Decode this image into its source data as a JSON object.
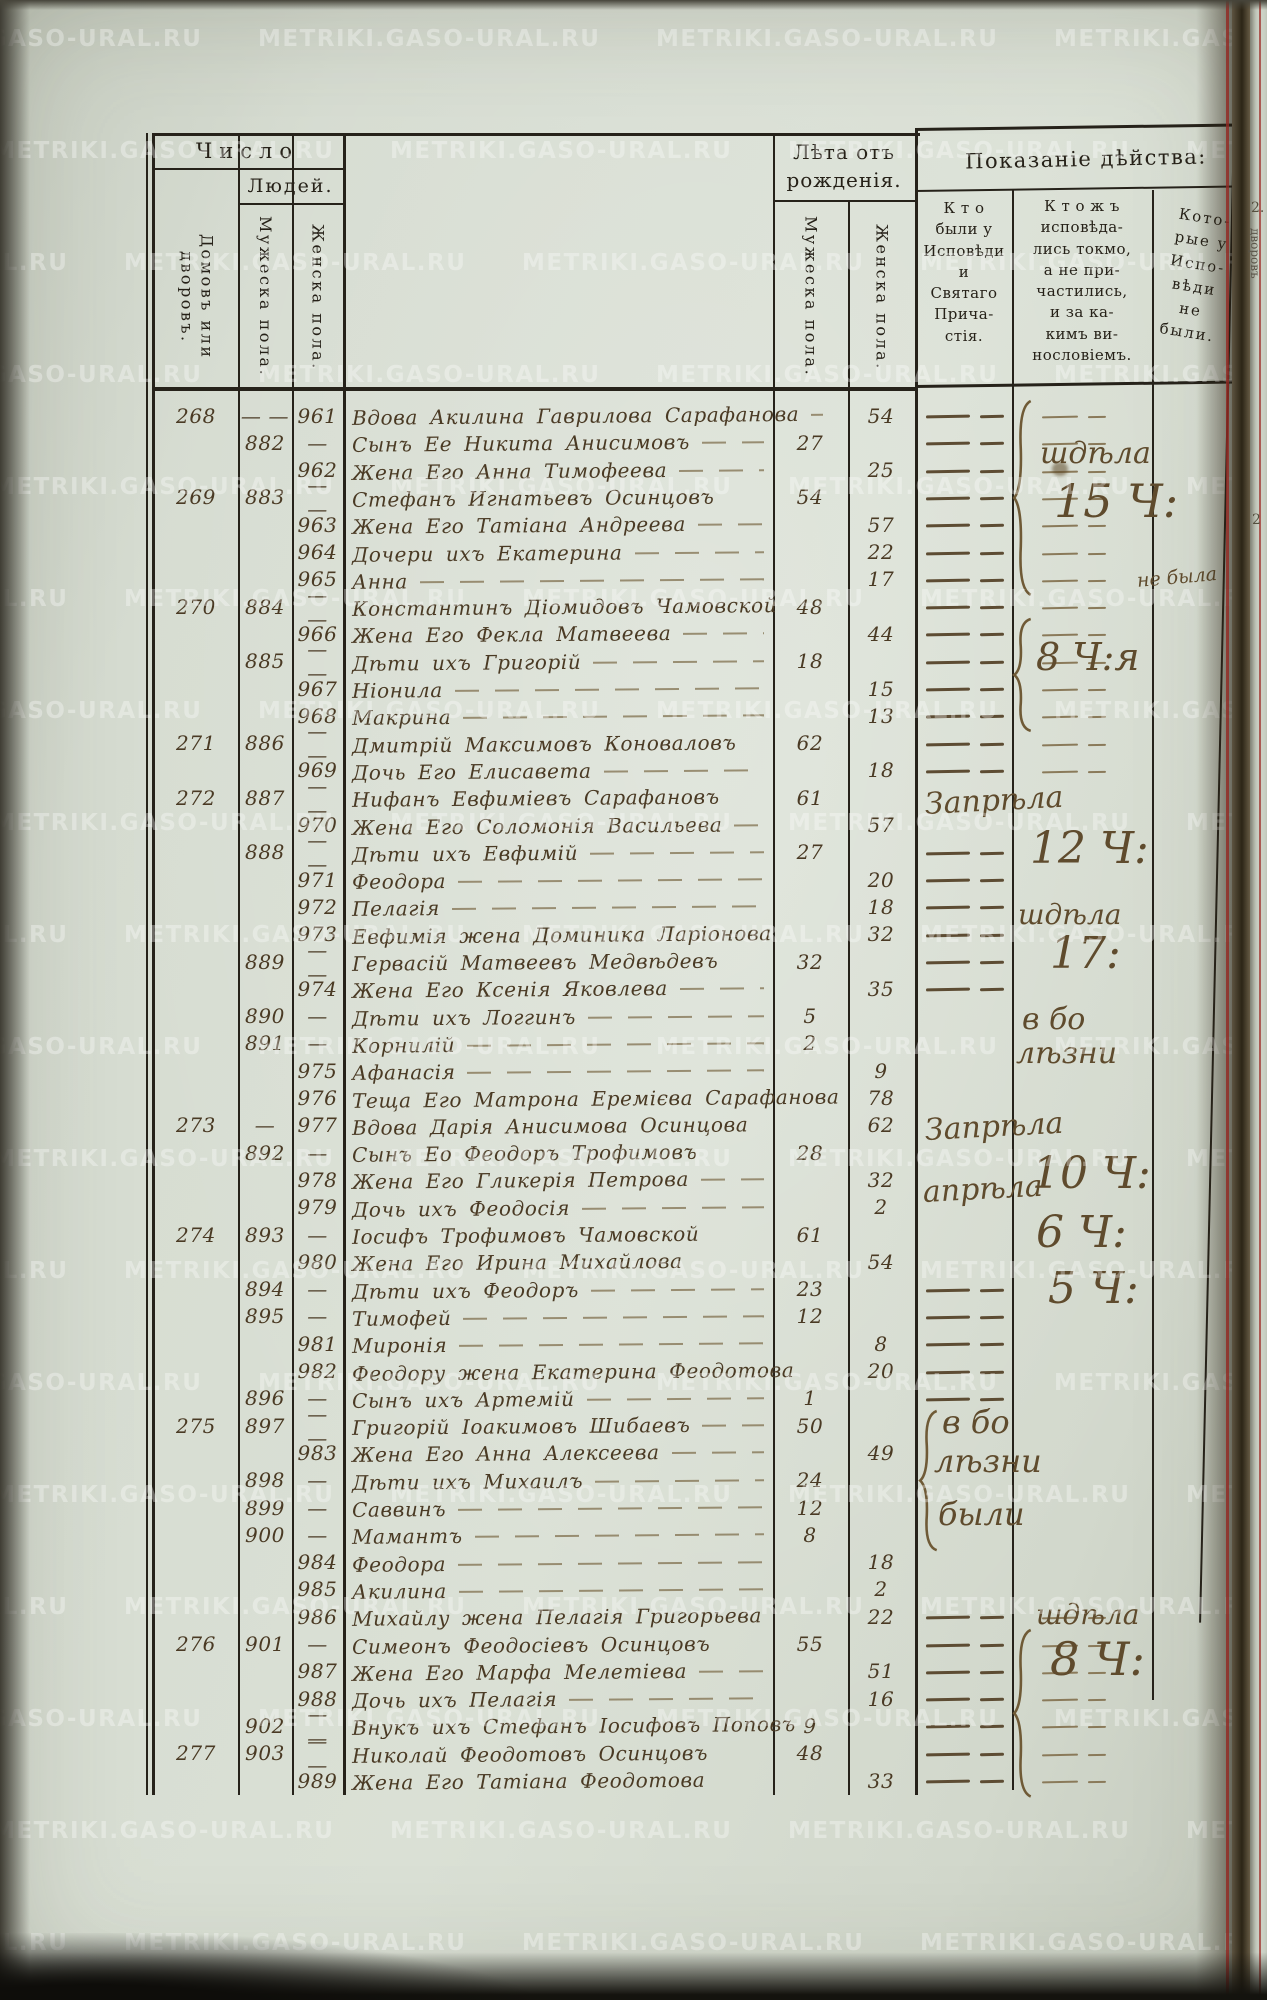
{
  "watermark": {
    "text": "METRIKI.GASO-URAL.RU"
  },
  "header": {
    "chislo": "Число",
    "lyudey": "Людей.",
    "col_households": "Домовъ или дворовъ.",
    "col_male_serial": "Мужеска пола.",
    "col_female_serial": "Женска пола.",
    "leta_line1": "Лѣта отъ",
    "leta_line2": "рожденія.",
    "col_male_age": "Мужеска пола.",
    "col_female_age": "Женска пола.",
    "action_title": "Показаніе дѣйства:",
    "action_col1": [
      "К т о",
      "были у",
      "Исповѣди",
      "и",
      "Святаго",
      "Прича-",
      "стія."
    ],
    "action_col2": [
      "К т о ж ъ",
      "исповѣда-",
      "лись токмо,",
      "а не при-",
      "частились,",
      "и за ка-",
      "кимъ ви-",
      "нословіемъ."
    ],
    "action_col3": [
      "Кото-",
      "рые у",
      "Испо-",
      "вѣди",
      "не",
      "были."
    ]
  },
  "rows": [
    {
      "h": "268",
      "m": "— —",
      "f": "961",
      "n": "Вдова Акилина Гаврилова Сарафанова",
      "fa": "54",
      "fill": true,
      "d1": true,
      "d2": true
    },
    {
      "m": "882",
      "f": "—",
      "n": "Сынъ Ее Никита Анисимовъ",
      "ma": "27",
      "fill": true,
      "d1": true,
      "d2": true
    },
    {
      "f": "962",
      "n": "Жена Его Анна Тимофеева",
      "fa": "25",
      "fill": true,
      "d1": true,
      "d2": true
    },
    {
      "h": "269",
      "m": "883",
      "f": "— —",
      "n": "Стефанъ Игнатьевъ Осинцовъ",
      "ma": "54",
      "d1": true,
      "d2": true
    },
    {
      "f": "963",
      "n": "Жена Его Татіана Андреева",
      "fa": "57",
      "fill": true,
      "d1": true,
      "d2": true
    },
    {
      "f": "964",
      "n": "Дочери ихъ Екатерина",
      "fa": "22",
      "fill": true,
      "d1": true,
      "d2": true
    },
    {
      "f": "965",
      "n": "Анна",
      "fa": "17",
      "fill": true,
      "d1": true,
      "d2": true
    },
    {
      "h": "270",
      "m": "884",
      "f": "— —",
      "n": "Константинъ Діомидовъ Чамовской",
      "ma": "48",
      "d1": true,
      "d2": true
    },
    {
      "f": "966",
      "n": "Жена Его Фекла Матвеева",
      "fa": "44",
      "fill": true,
      "d1": true,
      "d2": true
    },
    {
      "m": "885",
      "f": "— —",
      "n": "Дѣти ихъ Григорій",
      "ma": "18",
      "fill": true,
      "d1": true,
      "d2": true
    },
    {
      "f": "967",
      "n": "Ніонила",
      "fa": "15",
      "fill": true,
      "d1": true,
      "d2": true
    },
    {
      "f": "968",
      "n": "Макрина",
      "fa": "13",
      "fill": true,
      "d1": true,
      "d2": true
    },
    {
      "h": "271",
      "m": "886",
      "f": "— —",
      "n": "Дмитрій Максимовъ Коноваловъ",
      "ma": "62",
      "d1": true,
      "d2": true
    },
    {
      "f": "969",
      "n": "Дочь Его Елисавета",
      "fa": "18",
      "fill": true,
      "d1": true,
      "d2": true
    },
    {
      "h": "272",
      "m": "887",
      "f": "— —",
      "n": "Нифанъ Евфиміевъ Сарафановъ",
      "ma": "61"
    },
    {
      "f": "970",
      "n": "Жена Его Соломонія Васильева",
      "fa": "57",
      "fill": true
    },
    {
      "m": "888",
      "f": "— —",
      "n": "Дѣти ихъ Евфимій",
      "ma": "27",
      "fill": true,
      "d1": true
    },
    {
      "f": "971",
      "n": "Феодора",
      "fa": "20",
      "fill": true,
      "d1": true
    },
    {
      "f": "972",
      "n": "Пелагія",
      "fa": "18",
      "fill": true,
      "d1": true
    },
    {
      "f": "973",
      "n": "Евфимія жена Доминика Ларіонова",
      "fa": "32",
      "d1": true
    },
    {
      "m": "889",
      "f": "— —",
      "n": "Гервасій Матвеевъ Медвѣдевъ",
      "ma": "32",
      "d1": true
    },
    {
      "f": "974",
      "n": "Жена Его Ксенія Яковлева",
      "fa": "35",
      "fill": true,
      "d1": true
    },
    {
      "m": "890",
      "f": "—",
      "n": "Дѣти ихъ Логгинъ",
      "ma": "5",
      "fill": true
    },
    {
      "m": "891",
      "f": "—",
      "n": "Корнилій",
      "ma": "2",
      "fill": true
    },
    {
      "f": "975",
      "n": "Афанасія",
      "fa": "9",
      "fill": true
    },
    {
      "f": "976",
      "n": "Теща Его Матрона Еремієва Сарафанова",
      "fa": "78"
    },
    {
      "h": "273",
      "m": "—",
      "f": "977",
      "n": "Вдова Дарія Анисимова Осинцова",
      "fa": "62"
    },
    {
      "m": "892",
      "f": "—",
      "n": "Сынъ Ео Феодоръ Трофимовъ",
      "ma": "28"
    },
    {
      "f": "978",
      "n": "Жена Его Гликерія Петрова",
      "fa": "32",
      "fill": true
    },
    {
      "f": "979",
      "n": "Дочь ихъ Феодосія",
      "fa": "2",
      "fill": true
    },
    {
      "h": "274",
      "m": "893",
      "f": "—",
      "n": "Іосифъ Трофимовъ Чамовской",
      "ma": "61"
    },
    {
      "f": "980",
      "n": "Жена Его Ирина Михайлова",
      "fa": "54"
    },
    {
      "m": "894",
      "f": "—",
      "n": "Дѣти ихъ Феодоръ",
      "ma": "23",
      "fill": true,
      "d1": true
    },
    {
      "m": "895",
      "f": "—",
      "n": "Тимофей",
      "ma": "12",
      "fill": true,
      "d1": true
    },
    {
      "f": "981",
      "n": "Миронія",
      "fa": "8",
      "fill": true,
      "d1": true
    },
    {
      "f": "982",
      "n": "Феодору жена Екатерина Феодотова",
      "fa": "20",
      "d1": true
    },
    {
      "m": "896",
      "f": "—",
      "n": "Сынъ ихъ Артемій",
      "ma": "1",
      "fill": true,
      "d1": true
    },
    {
      "h": "275",
      "m": "897",
      "f": "— —",
      "n": "Григорій Іоакимовъ Шибаевъ",
      "ma": "50",
      "fill": true
    },
    {
      "f": "983",
      "n": "Жена Его Анна Алексеева",
      "fa": "49",
      "fill": true
    },
    {
      "m": "898",
      "f": "—",
      "n": "Дѣти ихъ Михаилъ",
      "ma": "24",
      "fill": true
    },
    {
      "m": "899",
      "f": "—",
      "n": "Саввинъ",
      "ma": "12",
      "fill": true
    },
    {
      "m": "900",
      "f": "—",
      "n": "Мамантъ",
      "ma": "8",
      "fill": true
    },
    {
      "f": "984",
      "n": "Феодора",
      "fa": "18",
      "fill": true
    },
    {
      "f": "985",
      "n": "Акилина",
      "fa": "2",
      "fill": true
    },
    {
      "f": "986",
      "n": "Михайлу жена Пелагія Григорьева",
      "fa": "22",
      "d1": true,
      "d2": true
    },
    {
      "h": "276",
      "m": "901",
      "f": "—",
      "n": "Симеонъ Феодосіевъ Осинцовъ",
      "ma": "55",
      "d1": true,
      "d2": true
    },
    {
      "f": "987",
      "n": "Жена Его Марфа Мелетіева",
      "fa": "51",
      "fill": true,
      "d1": true,
      "d2": true
    },
    {
      "f": "988",
      "n": "Дочь ихъ Пелагія",
      "fa": "16",
      "fill": true,
      "d1": true,
      "d2": true
    },
    {
      "m": "902",
      "f": "— —",
      "n": "Внукъ ихъ Стефанъ Іосифовъ Поповъ",
      "ma": "9",
      "d1": true,
      "d2": true
    },
    {
      "h": "277",
      "m": "903",
      "f": "— —",
      "n": "Николай Феодотовъ Осинцовъ",
      "ma": "48",
      "d1": true,
      "d2": true
    },
    {
      "f": "989",
      "n": "Жена Его Татіана Феодотова",
      "fa": "33",
      "d1": true,
      "d2": true
    }
  ],
  "annotations": [
    {
      "id": "a1",
      "lines": [
        "шдѣла",
        "15 Ч:"
      ]
    },
    {
      "id": "a2",
      "lines": [
        "не была"
      ]
    },
    {
      "id": "a3",
      "lines": [
        "8 Ч:я"
      ]
    },
    {
      "id": "a4",
      "lines": [
        "Запрѣла",
        "12 Ч:"
      ]
    },
    {
      "id": "a5",
      "lines": [
        "шдѣла",
        "17:"
      ]
    },
    {
      "id": "a6",
      "lines": [
        "в бо",
        "лѣзни"
      ]
    },
    {
      "id": "a7",
      "lines": [
        "Запрѣла",
        "10 Ч:"
      ]
    },
    {
      "id": "a8",
      "lines": [
        "апрѣла",
        "6 Ч:"
      ]
    },
    {
      "id": "a9",
      "lines": [
        "5 Ч:"
      ]
    },
    {
      "id": "a10",
      "lines": [
        "в бо",
        "лѣзни",
        "были"
      ]
    },
    {
      "id": "a11",
      "lines": [
        "шдѣла",
        "8 Ч:"
      ]
    }
  ],
  "edge": {
    "fragment": "дворовъ",
    "num1": "2.",
    "num2": "2"
  }
}
